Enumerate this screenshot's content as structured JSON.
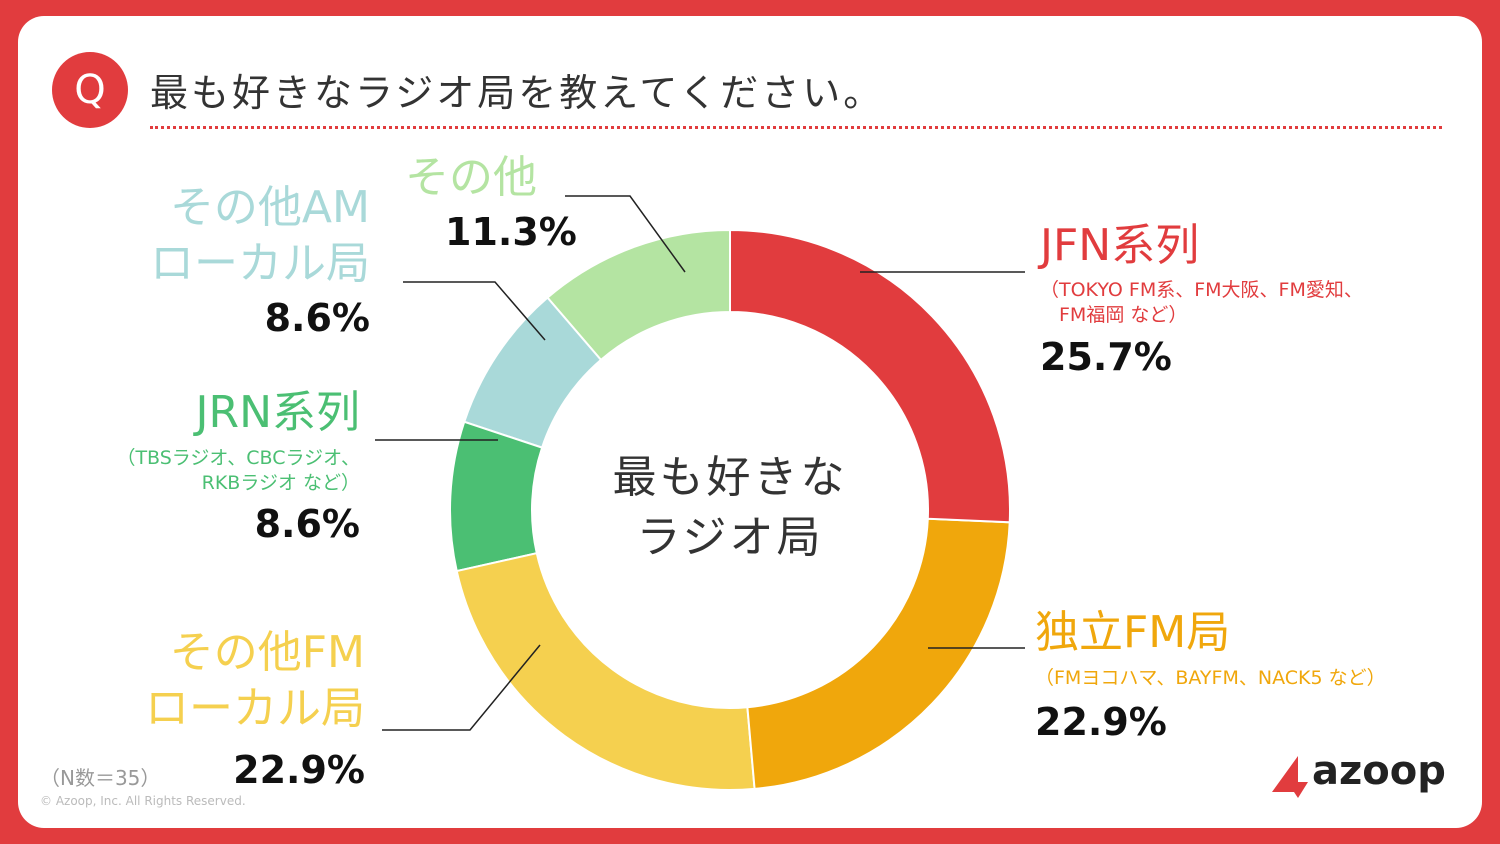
{
  "header": {
    "badge": "Q",
    "title": "最も好きなラジオ局を教えてください。"
  },
  "chart_data": {
    "type": "donut",
    "center_label": "最も好きな\nラジオ局",
    "categories": [
      "JFN系列",
      "独立FM局",
      "その他FM\nローカル局",
      "JRN系列",
      "その他AM\nローカル局",
      "その他"
    ],
    "sublabels": [
      "（TOKYO FM系、FM大阪、FM愛知、\n　FM福岡 など）",
      "（FMヨコハマ、BAYFM、NACK5 など）",
      null,
      "（TBSラジオ、CBCラジオ、\nRKBラジオ など）",
      null,
      null
    ],
    "values": [
      25.7,
      22.9,
      22.9,
      8.6,
      8.6,
      11.3
    ],
    "value_labels": [
      "25.7%",
      "22.9%",
      "22.9%",
      "8.6%",
      "8.6%",
      "11.3%"
    ],
    "colors": [
      "#e13c3e",
      "#f0a70c",
      "#f5d04f",
      "#4bbf73",
      "#a9d9d9",
      "#b4e4a2"
    ]
  },
  "footer": {
    "note": "（N数＝35）",
    "copyright": "© Azoop, Inc.  All Rights Reserved.",
    "logo": "azoop"
  }
}
